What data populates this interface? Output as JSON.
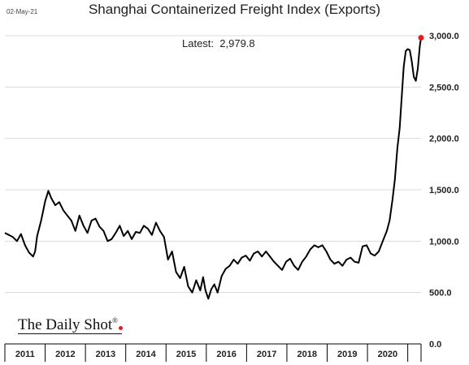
{
  "header": {
    "date_stamp": "02-May-21",
    "title": "Shanghai Containerized Freight Index (Exports)",
    "latest_label": "Latest:",
    "latest_value": "2,979.8"
  },
  "brand": {
    "name": "The Daily Shot",
    "mark": "®"
  },
  "colors": {
    "line": "#000000",
    "grid": "#d9d9d9",
    "latest_dot": "#e02020",
    "axis": "#000000"
  },
  "chart_data": {
    "type": "line",
    "title": "Shanghai Containerized Freight Index (Exports)",
    "xlabel": "",
    "ylabel": "",
    "ylim": [
      0,
      3000
    ],
    "xlim": [
      2011.0,
      2021.33
    ],
    "y_ticks": [
      0,
      500,
      1000,
      1500,
      2000,
      2500,
      3000
    ],
    "y_tick_labels": [
      "0.0",
      "500.0",
      "1,000.0",
      "1,500.0",
      "2,000.0",
      "2,500.0",
      "3,000.0"
    ],
    "x_tick_labels": [
      "2011",
      "2012",
      "2013",
      "2014",
      "2015",
      "2016",
      "2017",
      "2018",
      "2019",
      "2020"
    ],
    "grid": "horizontal",
    "y_axis_side": "right",
    "series": [
      {
        "values": [
          [
            2011.0,
            1080
          ],
          [
            2011.1,
            1060
          ],
          [
            2011.2,
            1040
          ],
          [
            2011.3,
            1000
          ],
          [
            2011.4,
            1070
          ],
          [
            2011.5,
            960
          ],
          [
            2011.6,
            890
          ],
          [
            2011.7,
            850
          ],
          [
            2011.75,
            900
          ],
          [
            2011.8,
            1050
          ],
          [
            2011.9,
            1200
          ],
          [
            2012.0,
            1390
          ],
          [
            2012.08,
            1490
          ],
          [
            2012.15,
            1420
          ],
          [
            2012.25,
            1350
          ],
          [
            2012.35,
            1380
          ],
          [
            2012.45,
            1300
          ],
          [
            2012.55,
            1250
          ],
          [
            2012.65,
            1200
          ],
          [
            2012.75,
            1100
          ],
          [
            2012.85,
            1250
          ],
          [
            2012.95,
            1150
          ],
          [
            2013.05,
            1080
          ],
          [
            2013.15,
            1200
          ],
          [
            2013.25,
            1220
          ],
          [
            2013.35,
            1140
          ],
          [
            2013.45,
            1100
          ],
          [
            2013.55,
            1000
          ],
          [
            2013.65,
            1020
          ],
          [
            2013.75,
            1080
          ],
          [
            2013.85,
            1150
          ],
          [
            2013.95,
            1050
          ],
          [
            2014.05,
            1100
          ],
          [
            2014.15,
            1020
          ],
          [
            2014.25,
            1090
          ],
          [
            2014.35,
            1080
          ],
          [
            2014.45,
            1150
          ],
          [
            2014.55,
            1120
          ],
          [
            2014.65,
            1060
          ],
          [
            2014.75,
            1180
          ],
          [
            2014.85,
            1100
          ],
          [
            2014.95,
            1040
          ],
          [
            2015.05,
            820
          ],
          [
            2015.15,
            900
          ],
          [
            2015.25,
            700
          ],
          [
            2015.35,
            640
          ],
          [
            2015.45,
            750
          ],
          [
            2015.55,
            560
          ],
          [
            2015.65,
            500
          ],
          [
            2015.75,
            620
          ],
          [
            2015.85,
            520
          ],
          [
            2015.92,
            650
          ],
          [
            2015.98,
            520
          ],
          [
            2016.05,
            440
          ],
          [
            2016.12,
            530
          ],
          [
            2016.2,
            580
          ],
          [
            2016.28,
            500
          ],
          [
            2016.38,
            660
          ],
          [
            2016.48,
            730
          ],
          [
            2016.58,
            760
          ],
          [
            2016.68,
            820
          ],
          [
            2016.78,
            780
          ],
          [
            2016.88,
            840
          ],
          [
            2016.98,
            860
          ],
          [
            2017.08,
            810
          ],
          [
            2017.18,
            880
          ],
          [
            2017.28,
            900
          ],
          [
            2017.38,
            850
          ],
          [
            2017.48,
            900
          ],
          [
            2017.58,
            850
          ],
          [
            2017.68,
            800
          ],
          [
            2017.78,
            760
          ],
          [
            2017.88,
            720
          ],
          [
            2017.98,
            800
          ],
          [
            2018.08,
            830
          ],
          [
            2018.18,
            760
          ],
          [
            2018.28,
            720
          ],
          [
            2018.38,
            800
          ],
          [
            2018.48,
            850
          ],
          [
            2018.58,
            920
          ],
          [
            2018.68,
            960
          ],
          [
            2018.78,
            940
          ],
          [
            2018.88,
            960
          ],
          [
            2018.98,
            900
          ],
          [
            2019.08,
            820
          ],
          [
            2019.18,
            780
          ],
          [
            2019.28,
            800
          ],
          [
            2019.38,
            760
          ],
          [
            2019.48,
            820
          ],
          [
            2019.58,
            840
          ],
          [
            2019.68,
            800
          ],
          [
            2019.78,
            790
          ],
          [
            2019.88,
            950
          ],
          [
            2019.98,
            960
          ],
          [
            2020.08,
            880
          ],
          [
            2020.18,
            860
          ],
          [
            2020.28,
            900
          ],
          [
            2020.38,
            1000
          ],
          [
            2020.48,
            1100
          ],
          [
            2020.55,
            1200
          ],
          [
            2020.62,
            1400
          ],
          [
            2020.68,
            1600
          ],
          [
            2020.74,
            1900
          ],
          [
            2020.8,
            2100
          ],
          [
            2020.85,
            2400
          ],
          [
            2020.9,
            2700
          ],
          [
            2020.95,
            2850
          ],
          [
            2021.0,
            2870
          ],
          [
            2021.05,
            2860
          ],
          [
            2021.1,
            2750
          ],
          [
            2021.15,
            2600
          ],
          [
            2021.2,
            2560
          ],
          [
            2021.25,
            2680
          ],
          [
            2021.3,
            2900
          ],
          [
            2021.33,
            2979.8
          ]
        ]
      }
    ],
    "latest_point": [
      2021.33,
      2979.8
    ]
  }
}
